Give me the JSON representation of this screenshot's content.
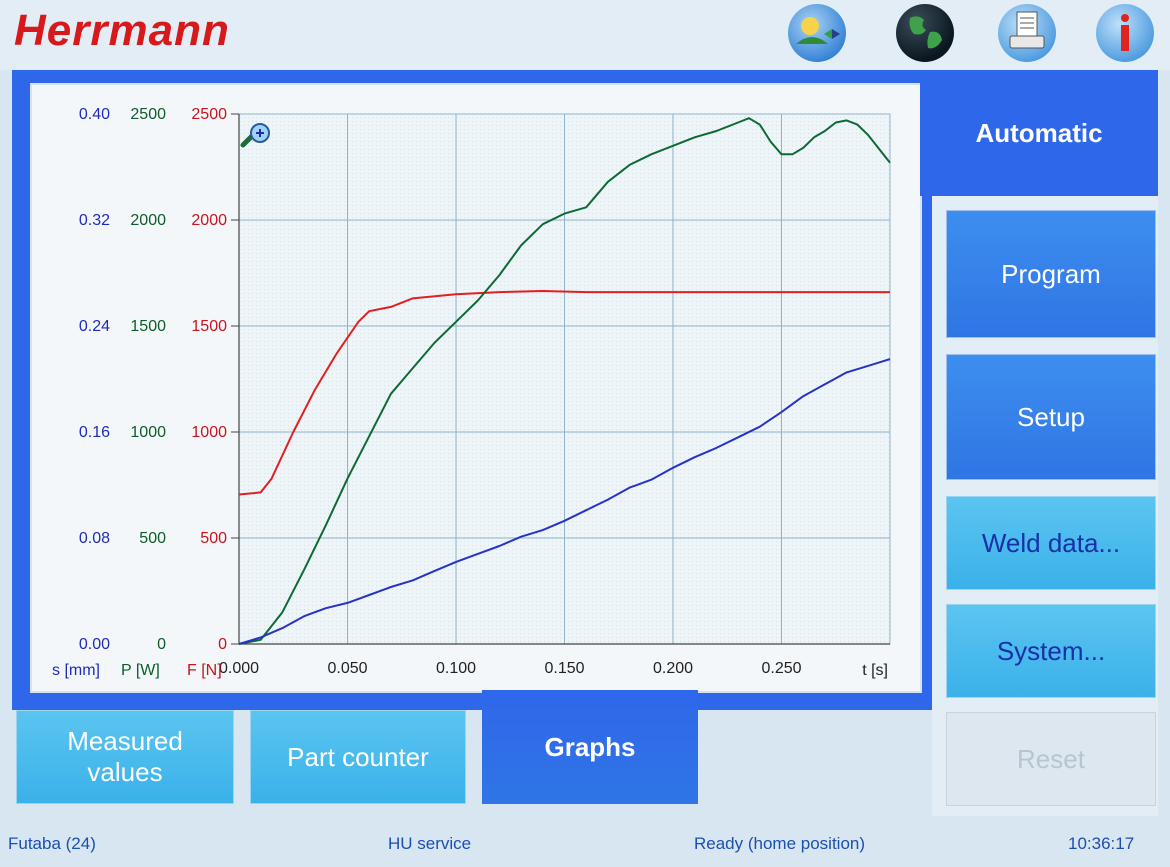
{
  "brand": {
    "logo": "Herrmann"
  },
  "toolbar": {
    "icons": [
      "language-icon",
      "globe-icon",
      "printer-icon",
      "info-icon"
    ]
  },
  "mode": {
    "label": "Automatic"
  },
  "side_menu": {
    "program": "Program",
    "setup": "Setup",
    "weld_data": "Weld data...",
    "system": "System...",
    "reset": "Reset"
  },
  "bottom_tabs": {
    "measured_line1": "Measured",
    "measured_line2": "values",
    "part_counter": "Part counter",
    "graphs": "Graphs"
  },
  "status_bar": {
    "device": "Futaba (24)",
    "user": "HU service",
    "state": "Ready (home position)",
    "time": "10:36:17"
  },
  "colors": {
    "blue_axis": "#1f2bb8",
    "green_axis": "#0f5c2a",
    "red_axis": "#c8141e",
    "frame": "#2f67ea"
  },
  "chart_data": {
    "type": "line",
    "axes": {
      "s": {
        "label": "s [mm]",
        "ticks": [
          "0.00",
          "0.08",
          "0.16",
          "0.24",
          "0.32",
          "0.40"
        ],
        "range": [
          0,
          0.4
        ],
        "color": "#1f2bb8"
      },
      "p": {
        "label": "P [W]",
        "ticks": [
          "0",
          "500",
          "1000",
          "1500",
          "2000",
          "2500"
        ],
        "range": [
          0,
          2500
        ],
        "color": "#0f5c2a"
      },
      "f": {
        "label": "F [N]",
        "ticks": [
          "0",
          "500",
          "1000",
          "1500",
          "2000",
          "2500"
        ],
        "range": [
          0,
          2500
        ],
        "color": "#c8141e"
      },
      "x": {
        "label": "t [s]",
        "ticks": [
          "0.000",
          "0.050",
          "0.100",
          "0.150",
          "0.200",
          "0.250"
        ],
        "range": [
          0,
          0.3
        ]
      }
    },
    "grid": true,
    "series": [
      {
        "axis": "f",
        "color": "#e02020",
        "x": [
          0,
          0.01,
          0.015,
          0.025,
          0.035,
          0.045,
          0.055,
          0.06,
          0.065,
          0.07,
          0.08,
          0.1,
          0.12,
          0.14,
          0.16,
          0.2,
          0.25,
          0.3
        ],
        "y": [
          705,
          715,
          780,
          1000,
          1200,
          1370,
          1520,
          1570,
          1580,
          1590,
          1630,
          1650,
          1660,
          1665,
          1660,
          1660,
          1660,
          1660
        ]
      },
      {
        "axis": "p",
        "color": "#0e6a34",
        "x": [
          0,
          0.01,
          0.02,
          0.03,
          0.04,
          0.05,
          0.06,
          0.07,
          0.08,
          0.09,
          0.1,
          0.11,
          0.12,
          0.13,
          0.14,
          0.15,
          0.16,
          0.17,
          0.18,
          0.19,
          0.2,
          0.21,
          0.22,
          0.23,
          0.235,
          0.24,
          0.245,
          0.25,
          0.255,
          0.26,
          0.265,
          0.27,
          0.275,
          0.28,
          0.285,
          0.29,
          0.3
        ],
        "y": [
          0,
          20,
          150,
          350,
          560,
          780,
          980,
          1180,
          1300,
          1420,
          1520,
          1620,
          1740,
          1880,
          1980,
          2030,
          2060,
          2180,
          2260,
          2310,
          2350,
          2390,
          2420,
          2460,
          2480,
          2450,
          2370,
          2310,
          2310,
          2340,
          2390,
          2420,
          2460,
          2470,
          2450,
          2400,
          2270
        ]
      },
      {
        "axis": "s",
        "color": "#2733c8",
        "x": [
          0,
          0.01,
          0.02,
          0.03,
          0.04,
          0.05,
          0.06,
          0.07,
          0.08,
          0.09,
          0.1,
          0.11,
          0.12,
          0.13,
          0.14,
          0.15,
          0.16,
          0.17,
          0.18,
          0.19,
          0.2,
          0.21,
          0.22,
          0.23,
          0.24,
          0.25,
          0.26,
          0.27,
          0.28,
          0.29,
          0.3
        ],
        "y": [
          0,
          0.005,
          0.012,
          0.021,
          0.027,
          0.031,
          0.037,
          0.043,
          0.048,
          0.055,
          0.062,
          0.068,
          0.074,
          0.081,
          0.086,
          0.093,
          0.101,
          0.109,
          0.118,
          0.124,
          0.133,
          0.141,
          0.148,
          0.156,
          0.164,
          0.175,
          0.187,
          0.196,
          0.205,
          0.21,
          0.215
        ]
      }
    ]
  }
}
